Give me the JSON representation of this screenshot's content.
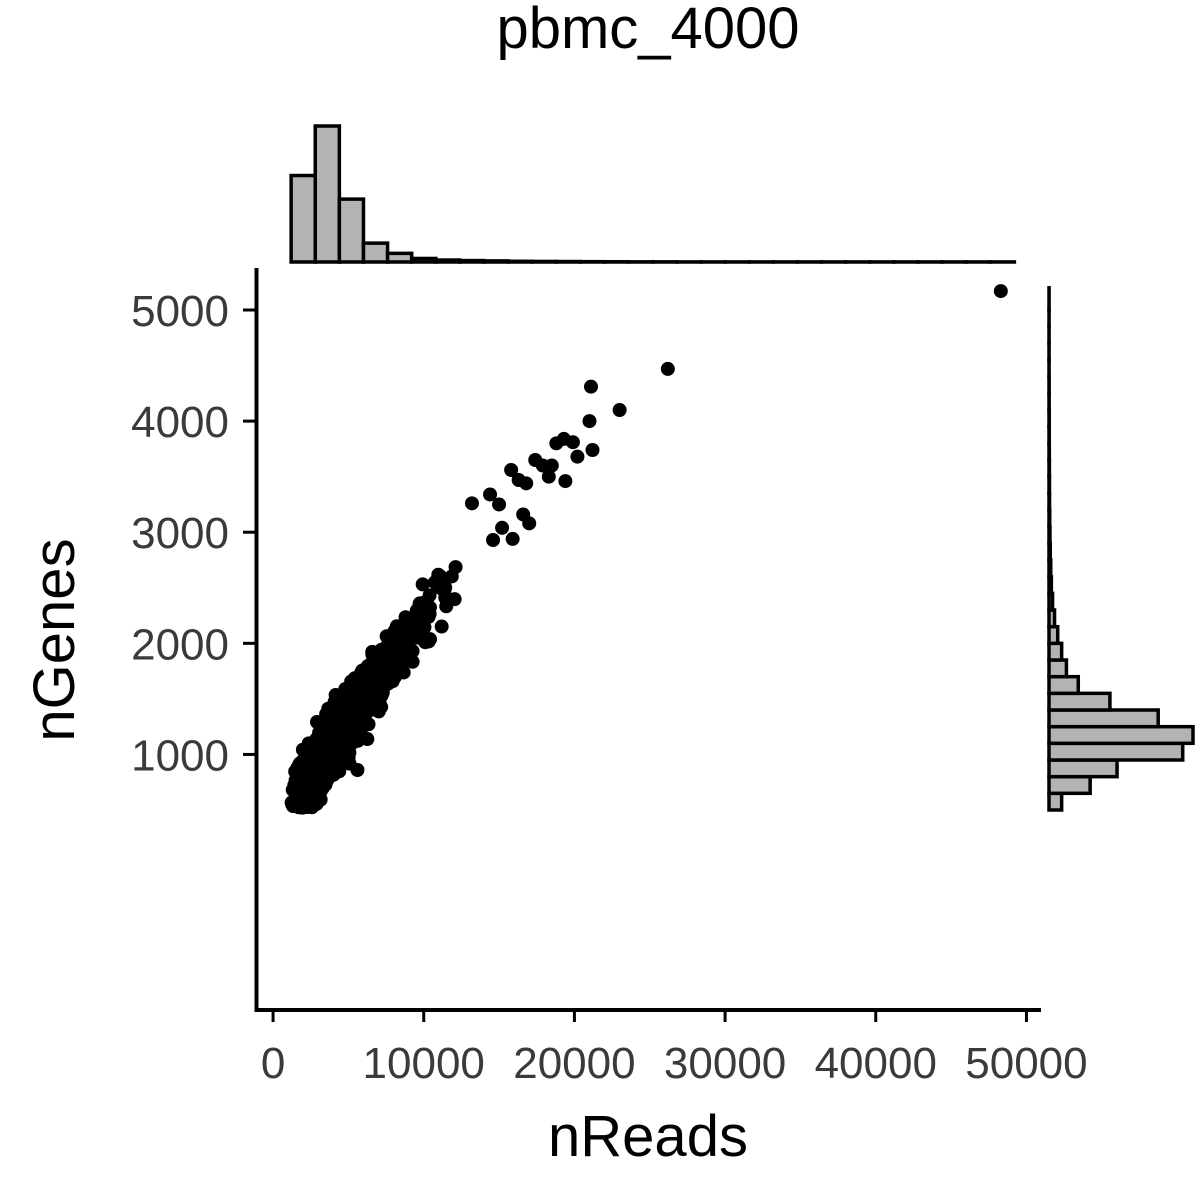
{
  "chart_data": {
    "type": "scatter",
    "title": "pbmc_4000",
    "xlabel": "nReads",
    "ylabel": "nGenes",
    "xlim": [
      -1000,
      50900
    ],
    "ylim": [
      -1300,
      5360
    ],
    "xticks": [
      0,
      10000,
      20000,
      30000,
      40000,
      50000
    ],
    "xtick_labels": [
      "0",
      "10000",
      "20000",
      "30000",
      "40000",
      "50000"
    ],
    "yticks": [
      1000,
      2000,
      3000,
      4000,
      5000
    ],
    "ytick_labels": [
      "1000",
      "2000",
      "3000",
      "4000",
      "5000"
    ],
    "grid": false,
    "outliers": [
      {
        "x": 48300,
        "y": 5170
      },
      {
        "x": 26200,
        "y": 4470
      },
      {
        "x": 21100,
        "y": 4310
      },
      {
        "x": 23000,
        "y": 4100
      },
      {
        "x": 21000,
        "y": 4000
      },
      {
        "x": 18800,
        "y": 3800
      },
      {
        "x": 19300,
        "y": 3840
      },
      {
        "x": 19900,
        "y": 3810
      },
      {
        "x": 21200,
        "y": 3740
      },
      {
        "x": 17400,
        "y": 3650
      },
      {
        "x": 17900,
        "y": 3600
      },
      {
        "x": 18500,
        "y": 3600
      },
      {
        "x": 20200,
        "y": 3680
      },
      {
        "x": 15800,
        "y": 3560
      },
      {
        "x": 16300,
        "y": 3470
      },
      {
        "x": 16800,
        "y": 3440
      },
      {
        "x": 18300,
        "y": 3500
      },
      {
        "x": 19400,
        "y": 3460
      },
      {
        "x": 14400,
        "y": 3340
      },
      {
        "x": 13200,
        "y": 3260
      },
      {
        "x": 15000,
        "y": 3250
      },
      {
        "x": 16600,
        "y": 3160
      },
      {
        "x": 15200,
        "y": 3040
      },
      {
        "x": 17000,
        "y": 3080
      },
      {
        "x": 14600,
        "y": 2930
      },
      {
        "x": 15900,
        "y": 2940
      },
      {
        "x": 5600,
        "y": 860
      }
    ],
    "cloud": {
      "description": "dense cloud of cells",
      "n_points": 1900,
      "min": {
        "x": 1200,
        "y": 520
      },
      "curve": [
        {
          "x": 1200,
          "y": 520
        },
        {
          "x": 3000,
          "y": 900
        },
        {
          "x": 5000,
          "y": 1300
        },
        {
          "x": 7000,
          "y": 1680
        },
        {
          "x": 9000,
          "y": 2050
        },
        {
          "x": 11000,
          "y": 2380
        },
        {
          "x": 13000,
          "y": 2700
        },
        {
          "x": 15000,
          "y": 3000
        }
      ],
      "spread": 130
    },
    "x_histogram": {
      "bin_edges": [
        1200,
        2800,
        4400,
        6000,
        7600,
        9200,
        10800,
        12400,
        14000,
        15600,
        17200,
        18800,
        20400,
        22000,
        23600,
        25200,
        26800,
        28400,
        30000,
        31600,
        33200,
        34800,
        36400,
        38000,
        39600,
        41200,
        42800,
        44400,
        46000,
        47600,
        49200
      ],
      "counts": [
        1100,
        1730,
        800,
        240,
        110,
        45,
        25,
        18,
        14,
        9,
        7,
        6,
        4,
        3,
        2,
        2,
        1,
        1,
        1,
        1,
        1,
        1,
        1,
        1,
        1,
        1,
        1,
        1,
        1,
        1
      ]
    },
    "y_histogram": {
      "bin_edges": [
        500,
        650,
        800,
        950,
        1100,
        1250,
        1400,
        1550,
        1700,
        1850,
        2000,
        2150,
        2300,
        2450,
        2600,
        2750,
        2900,
        3050,
        3200,
        3350,
        3500,
        3650,
        3800,
        3950,
        4100,
        4250,
        4400,
        4550,
        4700,
        4850,
        5000,
        5200
      ],
      "counts": [
        160,
        520,
        860,
        1690,
        1820,
        1380,
        770,
        370,
        220,
        160,
        110,
        70,
        45,
        30,
        22,
        16,
        12,
        9,
        7,
        6,
        5,
        4,
        3,
        3,
        2,
        2,
        1,
        1,
        1,
        1,
        1
      ]
    }
  }
}
